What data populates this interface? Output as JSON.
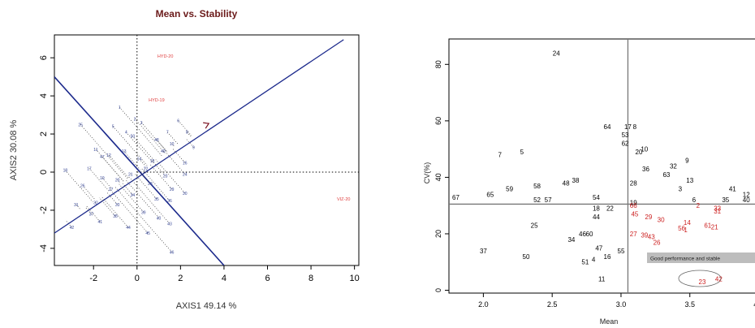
{
  "chart_data": [
    {
      "type": "scatter",
      "title": "Mean vs. Stability",
      "xlabel": "AXIS1 49.14 %",
      "ylabel": "AXIS2 30.08 %",
      "xlim": [
        -3.8,
        10.2
      ],
      "ylim": [
        -4.9,
        7.2
      ],
      "xticks": [
        "-2",
        "0",
        "2",
        "4",
        "6",
        "8",
        "10"
      ],
      "xtick_values": [
        -2,
        0,
        2,
        4,
        6,
        8,
        10
      ],
      "yticks": [
        "-4",
        "-2",
        "0",
        "2",
        "4",
        "6"
      ],
      "ytick_values": [
        -4,
        -2,
        0,
        2,
        4,
        6
      ],
      "environment_labels": [
        {
          "label": "HYD-20",
          "x": 1.3,
          "y": 6.1
        },
        {
          "label": "HYD-19",
          "x": 0.9,
          "y": 3.8
        },
        {
          "label": "VIZ-20",
          "x": 9.5,
          "y": -1.4
        }
      ],
      "genotype_points": [
        {
          "label": "25",
          "x": -2.6,
          "y": 2.5
        },
        {
          "label": "1",
          "x": -0.8,
          "y": 3.4
        },
        {
          "label": "2",
          "x": -0.1,
          "y": 2.8
        },
        {
          "label": "3",
          "x": 0.2,
          "y": 2.6
        },
        {
          "label": "4",
          "x": -0.5,
          "y": 2.1
        },
        {
          "label": "5",
          "x": -1.1,
          "y": 2.4
        },
        {
          "label": "6",
          "x": 1.9,
          "y": 2.7
        },
        {
          "label": "7",
          "x": 1.4,
          "y": 2.1
        },
        {
          "label": "8",
          "x": 2.3,
          "y": 2.1
        },
        {
          "label": "9",
          "x": 2.6,
          "y": 1.3
        },
        {
          "label": "10",
          "x": 1.6,
          "y": 1.5
        },
        {
          "label": "11",
          "x": -1.9,
          "y": 1.2
        },
        {
          "label": "12",
          "x": -1.3,
          "y": 0.9
        },
        {
          "label": "13",
          "x": -0.6,
          "y": 1.1
        },
        {
          "label": "14",
          "x": 0.1,
          "y": 0.7
        },
        {
          "label": "15",
          "x": 0.7,
          "y": 0.6
        },
        {
          "label": "16",
          "x": 2.2,
          "y": 0.5
        },
        {
          "label": "17",
          "x": -2.2,
          "y": 0.2
        },
        {
          "label": "18",
          "x": -3.3,
          "y": 0.1
        },
        {
          "label": "19",
          "x": -1.6,
          "y": -0.3
        },
        {
          "label": "20",
          "x": -0.9,
          "y": -0.4
        },
        {
          "label": "21",
          "x": -0.3,
          "y": -0.1
        },
        {
          "label": "22",
          "x": 0.4,
          "y": 0.2
        },
        {
          "label": "23",
          "x": 1.3,
          "y": -0.2
        },
        {
          "label": "24",
          "x": 2.2,
          "y": -0.1
        },
        {
          "label": "26",
          "x": -2.5,
          "y": -0.7
        },
        {
          "label": "27",
          "x": -1.2,
          "y": -0.9
        },
        {
          "label": "28",
          "x": 0.6,
          "y": -0.6
        },
        {
          "label": "29",
          "x": 1.6,
          "y": -0.9
        },
        {
          "label": "30",
          "x": 2.2,
          "y": -1.1
        },
        {
          "label": "31",
          "x": -2.8,
          "y": -1.7
        },
        {
          "label": "32",
          "x": -1.9,
          "y": -1.6
        },
        {
          "label": "33",
          "x": -0.9,
          "y": -1.7
        },
        {
          "label": "34",
          "x": -0.2,
          "y": -1.2
        },
        {
          "label": "35",
          "x": 0.9,
          "y": -1.4
        },
        {
          "label": "36",
          "x": 1.5,
          "y": -1.5
        },
        {
          "label": "37",
          "x": -2.1,
          "y": -2.2
        },
        {
          "label": "38",
          "x": -1.0,
          "y": -2.3
        },
        {
          "label": "39",
          "x": 0.3,
          "y": -2.1
        },
        {
          "label": "40",
          "x": 1.0,
          "y": -2.4
        },
        {
          "label": "41",
          "x": -1.7,
          "y": -2.6
        },
        {
          "label": "42",
          "x": -3.0,
          "y": -2.9
        },
        {
          "label": "43",
          "x": 1.5,
          "y": -2.7
        },
        {
          "label": "44",
          "x": -0.4,
          "y": -2.9
        },
        {
          "label": "45",
          "x": 0.5,
          "y": -3.2
        },
        {
          "label": "46",
          "x": 1.6,
          "y": -4.2
        },
        {
          "label": "47",
          "x": -1.6,
          "y": 0.8
        },
        {
          "label": "48",
          "x": 0.9,
          "y": 1.7
        },
        {
          "label": "49",
          "x": 1.2,
          "y": 1.1
        },
        {
          "label": "50",
          "x": -0.2,
          "y": 1.9
        }
      ]
    },
    {
      "type": "scatter",
      "title": "",
      "xlabel": "Mean",
      "ylabel": "CV(%)",
      "xlim": [
        1.75,
        4.05
      ],
      "ylim": [
        -1,
        89
      ],
      "xticks": [
        "2.0",
        "2.5",
        "3.0",
        "3.5",
        "4.0"
      ],
      "xtick_values": [
        2.0,
        2.5,
        3.0,
        3.5,
        4.0
      ],
      "yticks": [
        "0",
        "20",
        "40",
        "60",
        "80"
      ],
      "ytick_values": [
        0,
        20,
        40,
        60,
        80
      ],
      "reference_lines": {
        "mean": 3.05,
        "cv": 30.5
      },
      "annotation": "Good performance and stable",
      "series": [
        {
          "color": "#000000",
          "points": [
            {
              "label": "24",
              "x": 2.53,
              "y": 84
            },
            {
              "label": "64",
              "x": 2.9,
              "y": 58
            },
            {
              "label": "17",
              "x": 3.05,
              "y": 58
            },
            {
              "label": "8",
              "x": 3.1,
              "y": 58
            },
            {
              "label": "53",
              "x": 3.03,
              "y": 55
            },
            {
              "label": "62",
              "x": 3.03,
              "y": 52
            },
            {
              "label": "10",
              "x": 3.17,
              "y": 50
            },
            {
              "label": "20",
              "x": 3.13,
              "y": 49
            },
            {
              "label": "7",
              "x": 2.12,
              "y": 48
            },
            {
              "label": "5",
              "x": 2.28,
              "y": 49
            },
            {
              "label": "9",
              "x": 3.48,
              "y": 46
            },
            {
              "label": "32",
              "x": 3.38,
              "y": 44
            },
            {
              "label": "36",
              "x": 3.18,
              "y": 43
            },
            {
              "label": "63",
              "x": 3.33,
              "y": 41
            },
            {
              "label": "48",
              "x": 2.6,
              "y": 38
            },
            {
              "label": "38",
              "x": 2.67,
              "y": 39
            },
            {
              "label": "28",
              "x": 3.09,
              "y": 38
            },
            {
              "label": "13",
              "x": 3.5,
              "y": 39
            },
            {
              "label": "59",
              "x": 2.19,
              "y": 36
            },
            {
              "label": "58",
              "x": 2.39,
              "y": 37
            },
            {
              "label": "3",
              "x": 3.43,
              "y": 36
            },
            {
              "label": "41",
              "x": 3.81,
              "y": 36
            },
            {
              "label": "12",
              "x": 3.91,
              "y": 34
            },
            {
              "label": "67",
              "x": 1.8,
              "y": 33
            },
            {
              "label": "65",
              "x": 2.05,
              "y": 34
            },
            {
              "label": "52",
              "x": 2.39,
              "y": 32
            },
            {
              "label": "57",
              "x": 2.47,
              "y": 32
            },
            {
              "label": "54",
              "x": 2.82,
              "y": 33
            },
            {
              "label": "6",
              "x": 3.53,
              "y": 32
            },
            {
              "label": "35",
              "x": 3.76,
              "y": 32
            },
            {
              "label": "40",
              "x": 3.91,
              "y": 32
            },
            {
              "label": "19",
              "x": 3.09,
              "y": 31
            },
            {
              "label": "18",
              "x": 2.82,
              "y": 29
            },
            {
              "label": "22",
              "x": 2.92,
              "y": 29
            },
            {
              "label": "44",
              "x": 2.82,
              "y": 26
            },
            {
              "label": "25",
              "x": 2.37,
              "y": 23
            },
            {
              "label": "46",
              "x": 2.72,
              "y": 20
            },
            {
              "label": "60",
              "x": 2.77,
              "y": 20
            },
            {
              "label": "34",
              "x": 2.64,
              "y": 18
            },
            {
              "label": "47",
              "x": 2.84,
              "y": 15
            },
            {
              "label": "55",
              "x": 3.0,
              "y": 14
            },
            {
              "label": "37",
              "x": 2.0,
              "y": 14
            },
            {
              "label": "50",
              "x": 2.31,
              "y": 12
            },
            {
              "label": "16",
              "x": 2.9,
              "y": 12
            },
            {
              "label": "4",
              "x": 2.8,
              "y": 11
            },
            {
              "label": "51",
              "x": 2.74,
              "y": 10
            },
            {
              "label": "11",
              "x": 2.86,
              "y": 4
            }
          ]
        },
        {
          "color": "#cc1f1f",
          "points": [
            {
              "label": "66",
              "x": 3.09,
              "y": 30
            },
            {
              "label": "2",
              "x": 3.56,
              "y": 30
            },
            {
              "label": "33",
              "x": 3.7,
              "y": 29
            },
            {
              "label": "31",
              "x": 3.7,
              "y": 28
            },
            {
              "label": "45",
              "x": 3.1,
              "y": 27
            },
            {
              "label": "29",
              "x": 3.2,
              "y": 26
            },
            {
              "label": "30",
              "x": 3.29,
              "y": 25
            },
            {
              "label": "14",
              "x": 3.48,
              "y": 24
            },
            {
              "label": "56",
              "x": 3.44,
              "y": 22
            },
            {
              "label": "1",
              "x": 3.47,
              "y": 21.5
            },
            {
              "label": "61",
              "x": 3.63,
              "y": 23
            },
            {
              "label": "21",
              "x": 3.68,
              "y": 22.5
            },
            {
              "label": "15",
              "x": 4.03,
              "y": 23
            },
            {
              "label": "27",
              "x": 3.09,
              "y": 20
            },
            {
              "label": "39",
              "x": 3.17,
              "y": 19.5
            },
            {
              "label": "43",
              "x": 3.22,
              "y": 19
            },
            {
              "label": "26",
              "x": 3.26,
              "y": 17
            },
            {
              "label": "23",
              "x": 3.59,
              "y": 3
            },
            {
              "label": "42",
              "x": 3.71,
              "y": 4
            }
          ]
        }
      ]
    }
  ]
}
